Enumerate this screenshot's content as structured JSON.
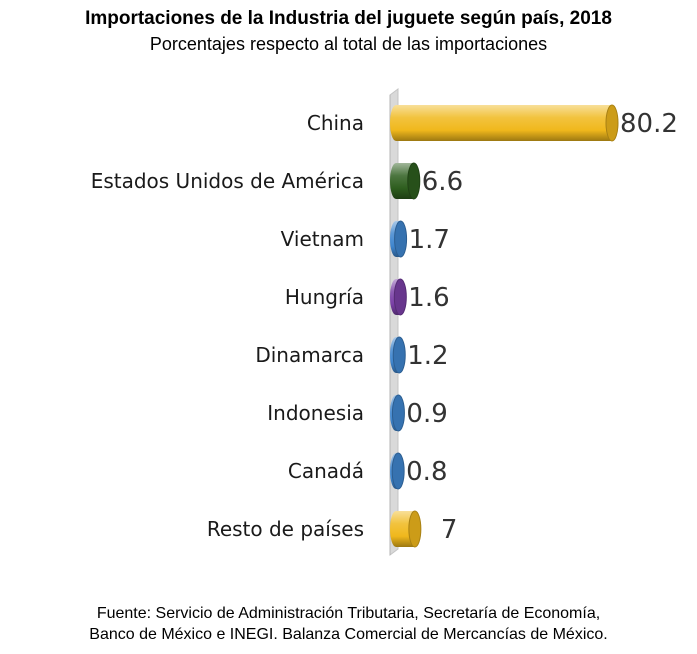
{
  "title": "Importaciones de la Industria del juguete según país, 2018",
  "subtitle": "Porcentajes respecto al total de las importaciones",
  "footer": {
    "line1": "Fuente: Servicio de Administración Tributaria, Secretaría de Economía,",
    "line2": "Banco de México e INEGI. Balanza Comercial de Mercancías de México."
  },
  "chart_data": {
    "type": "bar",
    "orientation": "horizontal",
    "title": "Importaciones de la Industria del juguete según país, 2018",
    "subtitle": "Porcentajes respecto al total de las importaciones",
    "categories": [
      "China",
      "Estados Unidos de América",
      "Vietnam",
      "Hungría",
      "Dinamarca",
      "Indonesia",
      "Canadá",
      "Resto de países"
    ],
    "values": [
      80.2,
      6.6,
      1.7,
      1.6,
      1.2,
      0.9,
      0.8,
      7
    ],
    "value_labels": [
      "80.2",
      "6.6",
      "1.7",
      "1.6",
      "1.2",
      "0.9",
      "0.8",
      "7"
    ],
    "colors": [
      "#f0b81c",
      "#2e5e1e",
      "#3f86cf",
      "#7a3fa6",
      "#3f86cf",
      "#3f86cf",
      "#3f86cf",
      "#f0b81c"
    ],
    "xlim": [
      0,
      80.2
    ],
    "grid": false,
    "legend": "none"
  }
}
